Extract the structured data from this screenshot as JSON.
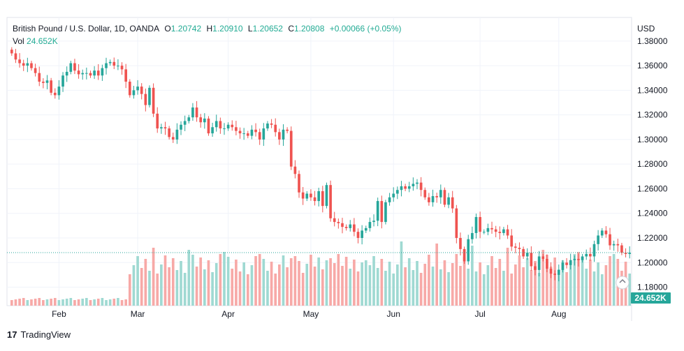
{
  "header": {
    "symbol": "British Pound / U.S. Dollar, 1D, OANDA",
    "o_label": "O",
    "o_value": "1.20742",
    "h_label": "H",
    "h_value": "1.20910",
    "l_label": "L",
    "l_value": "1.20652",
    "c_label": "C",
    "c_value": "1.20808",
    "change": "+0.00066 (+0.05%)",
    "vol_label": "Vol",
    "vol_value": "24.652K"
  },
  "currency": "USD",
  "last_price": "1.20808",
  "volume_badge": "24.652K",
  "branding": {
    "logo": "17",
    "name": "TradingView"
  },
  "colors": {
    "up": "#26a69a",
    "down": "#ef5350",
    "up_vol": "#9fd9d2",
    "down_vol": "#f7a9a7",
    "badge": "#26a69a",
    "price_line": "#26a69a"
  },
  "chart_data": {
    "type": "candlestick",
    "title": "British Pound / U.S. Dollar, 1D, OANDA",
    "ylim": [
      1.165,
      1.385
    ],
    "y_ticks": [
      "1.38000",
      "1.36000",
      "1.34000",
      "1.32000",
      "1.30000",
      "1.28000",
      "1.26000",
      "1.24000",
      "1.22000",
      "1.20000",
      "1.18000"
    ],
    "x_labels": [
      "Feb",
      "Mar",
      "Apr",
      "May",
      "Jun",
      "Jul",
      "Aug"
    ],
    "x_label_index": [
      12,
      32,
      55,
      76,
      97,
      119,
      139
    ],
    "grid": true,
    "closes": [
      1.37,
      1.365,
      1.362,
      1.36,
      1.362,
      1.358,
      1.354,
      1.347,
      1.346,
      1.348,
      1.338,
      1.336,
      1.343,
      1.352,
      1.355,
      1.362,
      1.356,
      1.353,
      1.354,
      1.354,
      1.352,
      1.356,
      1.352,
      1.358,
      1.362,
      1.363,
      1.36,
      1.36,
      1.357,
      1.347,
      1.336,
      1.34,
      1.343,
      1.337,
      1.328,
      1.342,
      1.321,
      1.309,
      1.31,
      1.309,
      1.302,
      1.3,
      1.308,
      1.312,
      1.315,
      1.318,
      1.326,
      1.318,
      1.314,
      1.317,
      1.305,
      1.31,
      1.315,
      1.309,
      1.309,
      1.312,
      1.31,
      1.307,
      1.305,
      1.305,
      1.303,
      1.308,
      1.306,
      1.3,
      1.309,
      1.313,
      1.312,
      1.306,
      1.3,
      1.308,
      1.307,
      1.278,
      1.272,
      1.257,
      1.252,
      1.256,
      1.253,
      1.25,
      1.258,
      1.246,
      1.263,
      1.236,
      1.233,
      1.232,
      1.229,
      1.228,
      1.231,
      1.225,
      1.22,
      1.226,
      1.228,
      1.233,
      1.234,
      1.25,
      1.233,
      1.249,
      1.253,
      1.256,
      1.259,
      1.262,
      1.26,
      1.262,
      1.264,
      1.265,
      1.259,
      1.253,
      1.249,
      1.254,
      1.253,
      1.259,
      1.247,
      1.253,
      1.244,
      1.22,
      1.211,
      1.201,
      1.219,
      1.224,
      1.237,
      1.225,
      1.225,
      1.228,
      1.227,
      1.225,
      1.224,
      1.227,
      1.222,
      1.213,
      1.212,
      1.211,
      1.205,
      1.208,
      1.197,
      1.194,
      1.205,
      1.203,
      1.195,
      1.191,
      1.19,
      1.194,
      1.2,
      1.198,
      1.202,
      1.203,
      1.202,
      1.205,
      1.207,
      1.205,
      1.215,
      1.222,
      1.226,
      1.223,
      1.214,
      1.215,
      1.214,
      1.208,
      1.207,
      1.208
    ]
  }
}
